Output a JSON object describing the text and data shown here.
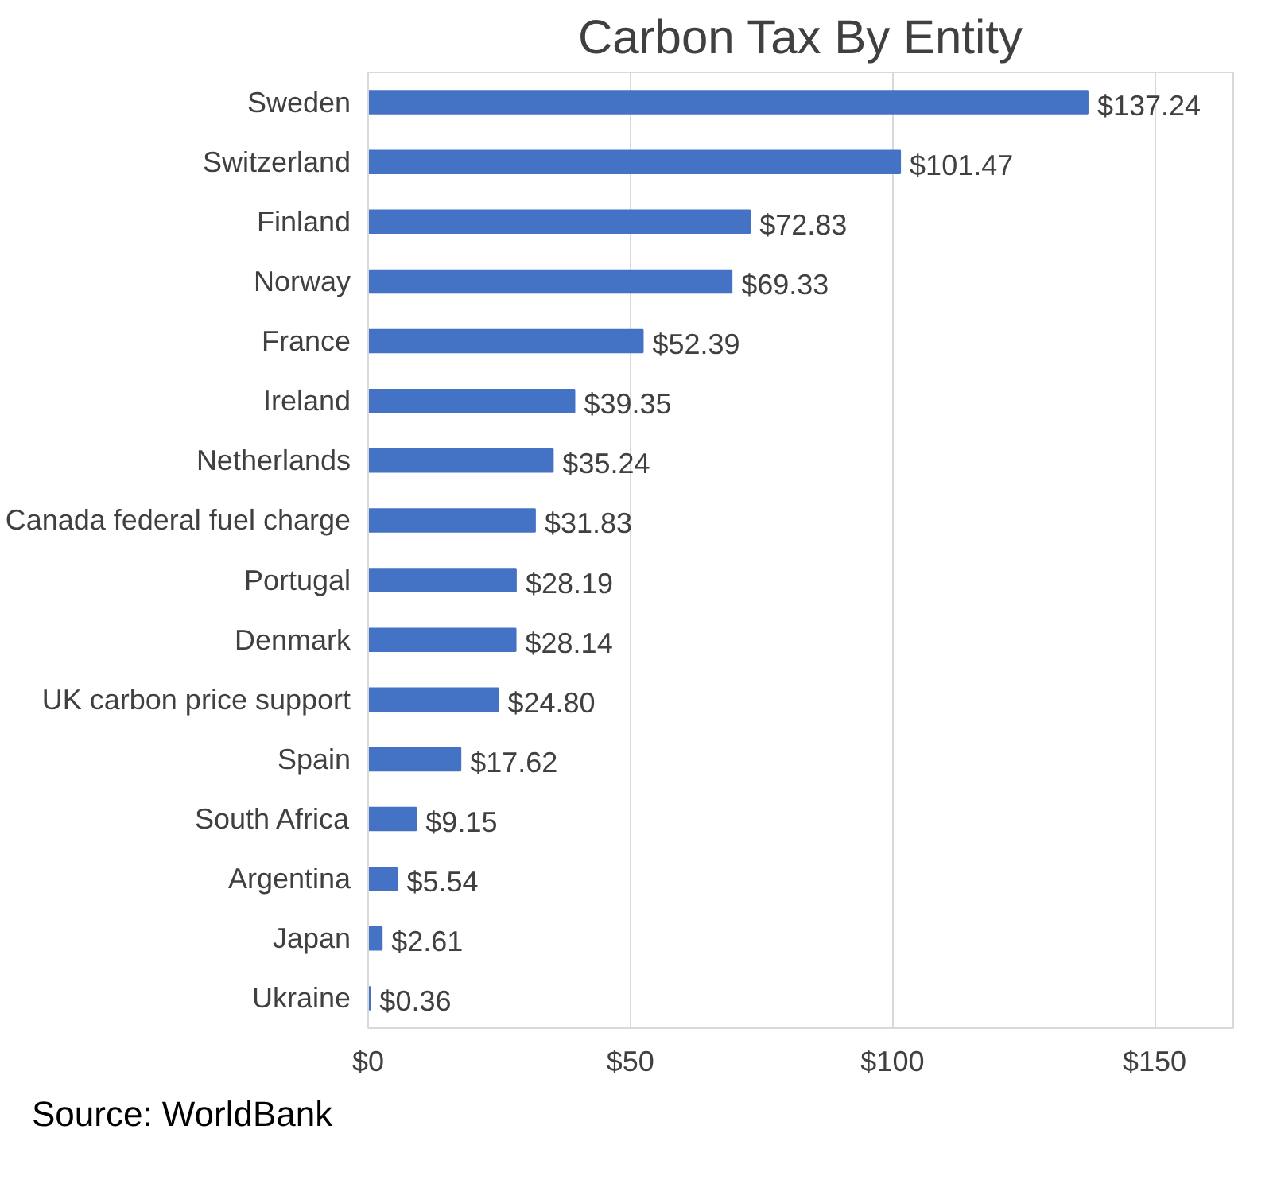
{
  "chart_data": {
    "type": "bar",
    "orientation": "horizontal",
    "title": "Carbon Tax By Entity",
    "categories": [
      "Sweden",
      "Switzerland",
      "Finland",
      "Norway",
      "France",
      "Ireland",
      "Netherlands",
      "Canada federal fuel charge",
      "Portugal",
      "Denmark",
      "UK carbon price support",
      "Spain",
      "South Africa",
      "Argentina",
      "Japan",
      "Ukraine"
    ],
    "values": [
      137.24,
      101.47,
      72.83,
      69.33,
      52.39,
      39.35,
      35.24,
      31.83,
      28.19,
      28.14,
      24.8,
      17.62,
      9.15,
      5.54,
      2.61,
      0.36
    ],
    "value_labels": [
      "$137.24",
      "$101.47",
      "$72.83",
      "$69.33",
      "$52.39",
      "$39.35",
      "$35.24",
      "$31.83",
      "$28.19",
      "$28.14",
      "$24.80",
      "$17.62",
      "$9.15",
      "$5.54",
      "$2.61",
      "$0.36"
    ],
    "color": "#4472c4",
    "xlim": [
      0,
      165
    ],
    "xticks": [
      {
        "value": 0,
        "label": "$0"
      },
      {
        "value": 50,
        "label": "$50"
      },
      {
        "value": 100,
        "label": "$100"
      },
      {
        "value": 150,
        "label": "$150"
      }
    ],
    "grid": "x",
    "annotations": [
      "Source: WorldBank"
    ]
  }
}
